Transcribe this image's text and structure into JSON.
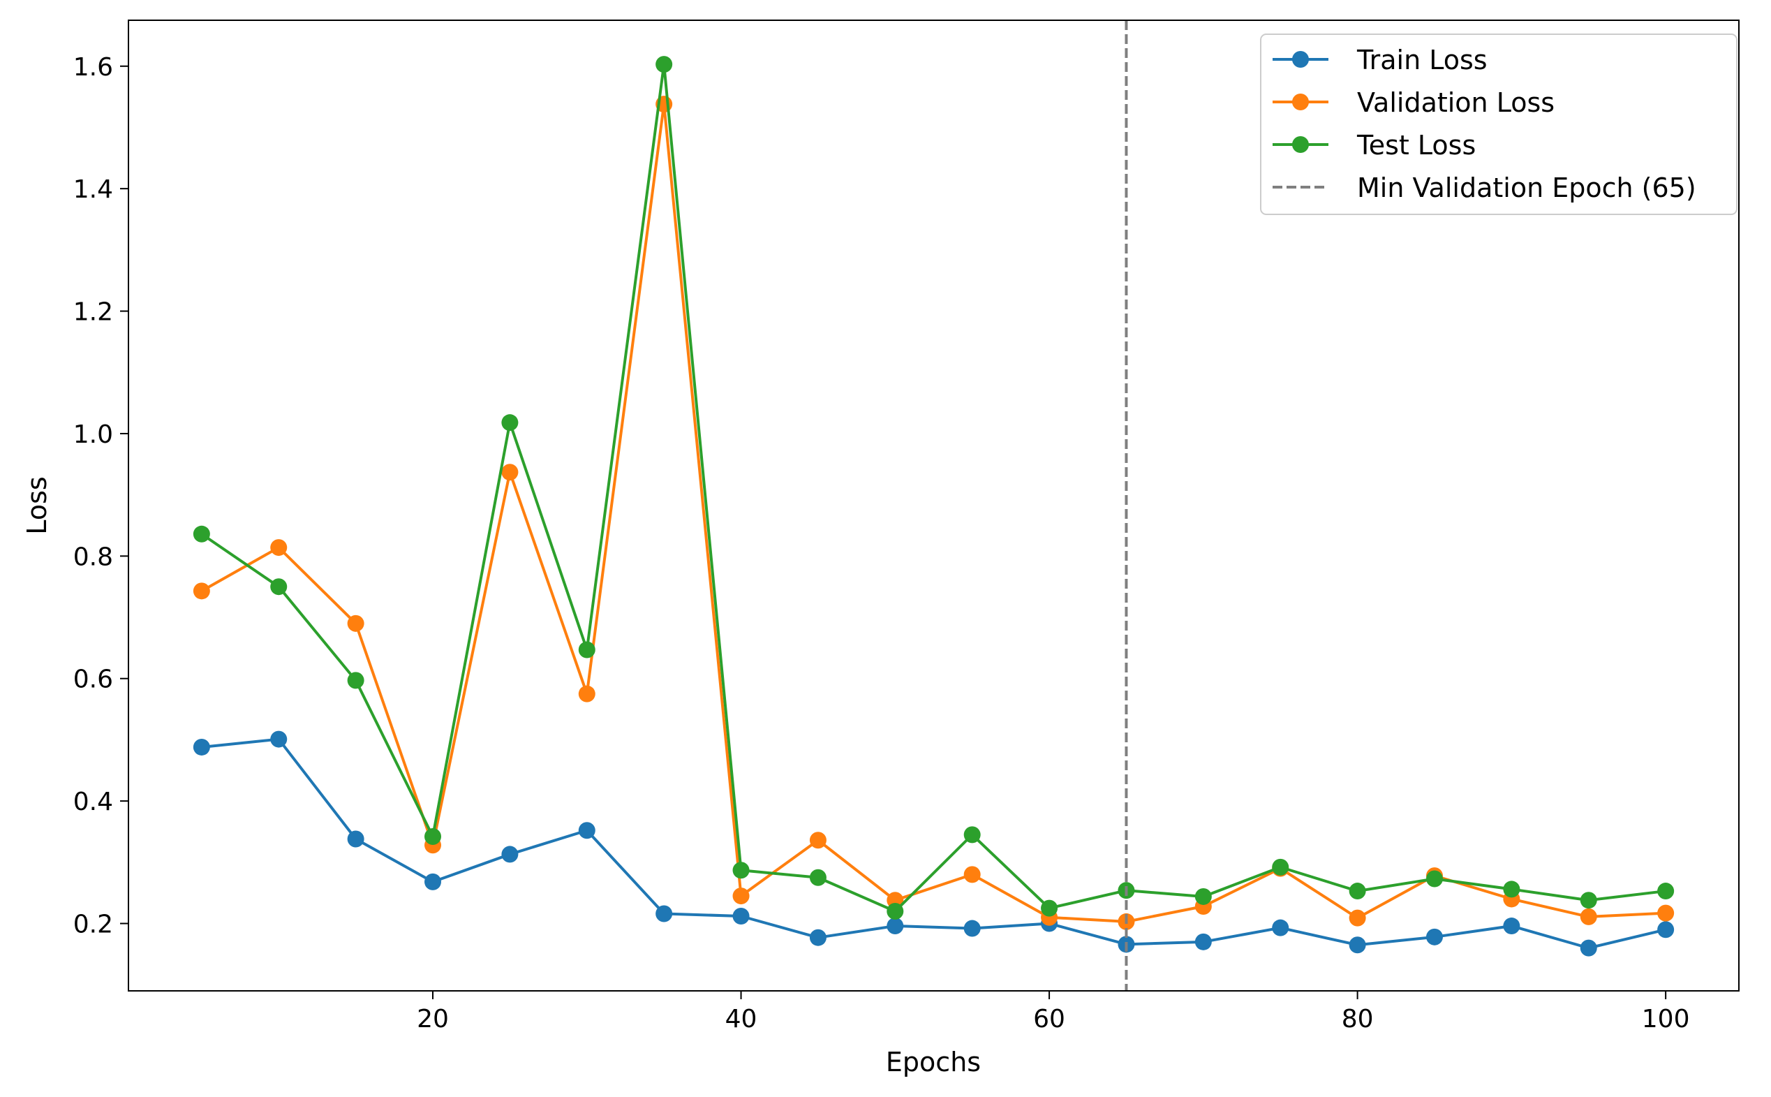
{
  "chart_data": {
    "type": "line",
    "title": "",
    "xlabel": "Epochs",
    "ylabel": "Loss",
    "xlim": [
      0.25,
      104.75
    ],
    "ylim": [
      0.09,
      1.675
    ],
    "xticks": [
      20,
      40,
      60,
      80,
      100
    ],
    "yticks": [
      0.2,
      0.4,
      0.6,
      0.8,
      1.0,
      1.2,
      1.4,
      1.6
    ],
    "ytick_labels": [
      "0.2",
      "0.4",
      "0.6",
      "0.8",
      "1.0",
      "1.2",
      "1.4",
      "1.6"
    ],
    "grid": false,
    "legend_position": "top-right",
    "x": [
      5,
      10,
      15,
      20,
      25,
      30,
      35,
      40,
      45,
      50,
      55,
      60,
      65,
      70,
      75,
      80,
      85,
      90,
      95,
      100
    ],
    "series": [
      {
        "name": "Train Loss",
        "color": "#1f77b4",
        "values": [
          0.488,
          0.501,
          0.338,
          0.268,
          0.313,
          0.352,
          0.216,
          0.212,
          0.177,
          0.196,
          0.192,
          0.2,
          0.166,
          0.17,
          0.193,
          0.165,
          0.178,
          0.196,
          0.16,
          0.19
        ]
      },
      {
        "name": "Validation Loss",
        "color": "#ff7f0e",
        "values": [
          0.743,
          0.814,
          0.69,
          0.328,
          0.937,
          0.575,
          1.538,
          0.245,
          0.336,
          0.238,
          0.28,
          0.21,
          0.203,
          0.228,
          0.29,
          0.209,
          0.278,
          0.24,
          0.211,
          0.217
        ]
      },
      {
        "name": "Test Loss",
        "color": "#2ca02c",
        "values": [
          0.836,
          0.75,
          0.597,
          0.342,
          1.018,
          0.647,
          1.603,
          0.287,
          0.275,
          0.22,
          0.345,
          0.225,
          0.254,
          0.244,
          0.292,
          0.253,
          0.273,
          0.256,
          0.238,
          0.253
        ]
      }
    ],
    "vline": {
      "name": "Min Validation Epoch (65)",
      "x": 65,
      "color": "#7f7f7f",
      "style": "dashed"
    }
  }
}
